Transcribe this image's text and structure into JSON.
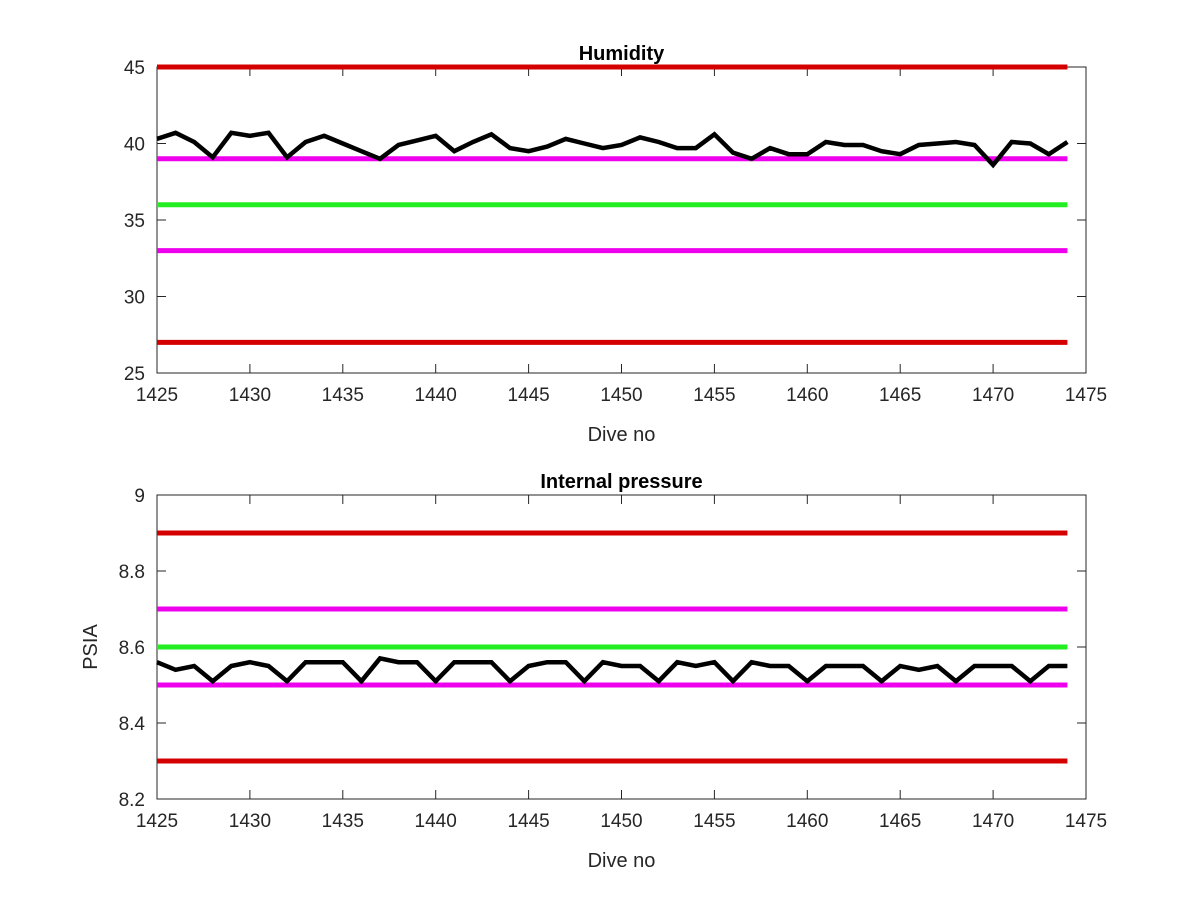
{
  "chart_data": [
    {
      "type": "line",
      "title": "Humidity",
      "xlabel": "Dive no",
      "ylabel": "",
      "xlim": [
        1425,
        1475
      ],
      "ylim": [
        25,
        45
      ],
      "xticks": [
        1425,
        1430,
        1435,
        1440,
        1445,
        1450,
        1455,
        1460,
        1465,
        1470,
        1475
      ],
      "yticks": [
        25,
        30,
        35,
        40,
        45
      ],
      "grid": false,
      "reference_lines": [
        {
          "y": 45,
          "color": "#d40000"
        },
        {
          "y": 39,
          "color": "#ee00ee"
        },
        {
          "y": 36,
          "color": "#22ee22"
        },
        {
          "y": 33,
          "color": "#ee00ee"
        },
        {
          "y": 27,
          "color": "#d40000"
        }
      ],
      "series": [
        {
          "color": "#000000",
          "x": [
            1425,
            1426,
            1427,
            1428,
            1429,
            1430,
            1431,
            1432,
            1433,
            1434,
            1435,
            1436,
            1437,
            1438,
            1439,
            1440,
            1441,
            1442,
            1443,
            1444,
            1445,
            1446,
            1447,
            1448,
            1449,
            1450,
            1451,
            1452,
            1453,
            1454,
            1455,
            1456,
            1457,
            1458,
            1459,
            1460,
            1461,
            1462,
            1463,
            1464,
            1465,
            1466,
            1467,
            1468,
            1469,
            1470,
            1471,
            1472,
            1473,
            1474
          ],
          "y": [
            40.3,
            40.7,
            40.1,
            39.1,
            40.7,
            40.5,
            40.7,
            39.1,
            40.1,
            40.5,
            40.0,
            39.5,
            39.0,
            39.9,
            40.2,
            40.5,
            39.5,
            40.1,
            40.6,
            39.7,
            39.5,
            39.8,
            40.3,
            40.0,
            39.7,
            39.9,
            40.4,
            40.1,
            39.7,
            39.7,
            40.6,
            39.4,
            39.0,
            39.7,
            39.3,
            39.3,
            40.1,
            39.9,
            39.9,
            39.5,
            39.3,
            39.9,
            40.0,
            40.1,
            39.9,
            38.6,
            40.1,
            40.0,
            39.3,
            40.1
          ]
        }
      ]
    },
    {
      "type": "line",
      "title": "Internal pressure",
      "xlabel": "Dive no",
      "ylabel": "PSIA",
      "xlim": [
        1425,
        1475
      ],
      "ylim": [
        8.2,
        9.0
      ],
      "xticks": [
        1425,
        1430,
        1435,
        1440,
        1445,
        1450,
        1455,
        1460,
        1465,
        1470,
        1475
      ],
      "yticks": [
        8.2,
        8.4,
        8.6,
        8.8,
        9.0
      ],
      "ytick_labels": [
        "8.2",
        "8.4",
        "8.6",
        "8.8",
        "9"
      ],
      "grid": false,
      "reference_lines": [
        {
          "y": 8.9,
          "color": "#d40000"
        },
        {
          "y": 8.7,
          "color": "#ee00ee"
        },
        {
          "y": 8.6,
          "color": "#22ee22"
        },
        {
          "y": 8.5,
          "color": "#ee00ee"
        },
        {
          "y": 8.3,
          "color": "#d40000"
        }
      ],
      "series": [
        {
          "color": "#000000",
          "x": [
            1425,
            1426,
            1427,
            1428,
            1429,
            1430,
            1431,
            1432,
            1433,
            1434,
            1435,
            1436,
            1437,
            1438,
            1439,
            1440,
            1441,
            1442,
            1443,
            1444,
            1445,
            1446,
            1447,
            1448,
            1449,
            1450,
            1451,
            1452,
            1453,
            1454,
            1455,
            1456,
            1457,
            1458,
            1459,
            1460,
            1461,
            1462,
            1463,
            1464,
            1465,
            1466,
            1467,
            1468,
            1469,
            1470,
            1471,
            1472,
            1473,
            1474
          ],
          "y": [
            8.56,
            8.54,
            8.55,
            8.51,
            8.55,
            8.56,
            8.55,
            8.51,
            8.56,
            8.56,
            8.56,
            8.51,
            8.57,
            8.56,
            8.56,
            8.51,
            8.56,
            8.56,
            8.56,
            8.51,
            8.55,
            8.56,
            8.56,
            8.51,
            8.56,
            8.55,
            8.55,
            8.51,
            8.56,
            8.55,
            8.56,
            8.51,
            8.56,
            8.55,
            8.55,
            8.51,
            8.55,
            8.55,
            8.55,
            8.51,
            8.55,
            8.54,
            8.55,
            8.51,
            8.55,
            8.55,
            8.55,
            8.51,
            8.55,
            8.55
          ]
        }
      ]
    }
  ]
}
